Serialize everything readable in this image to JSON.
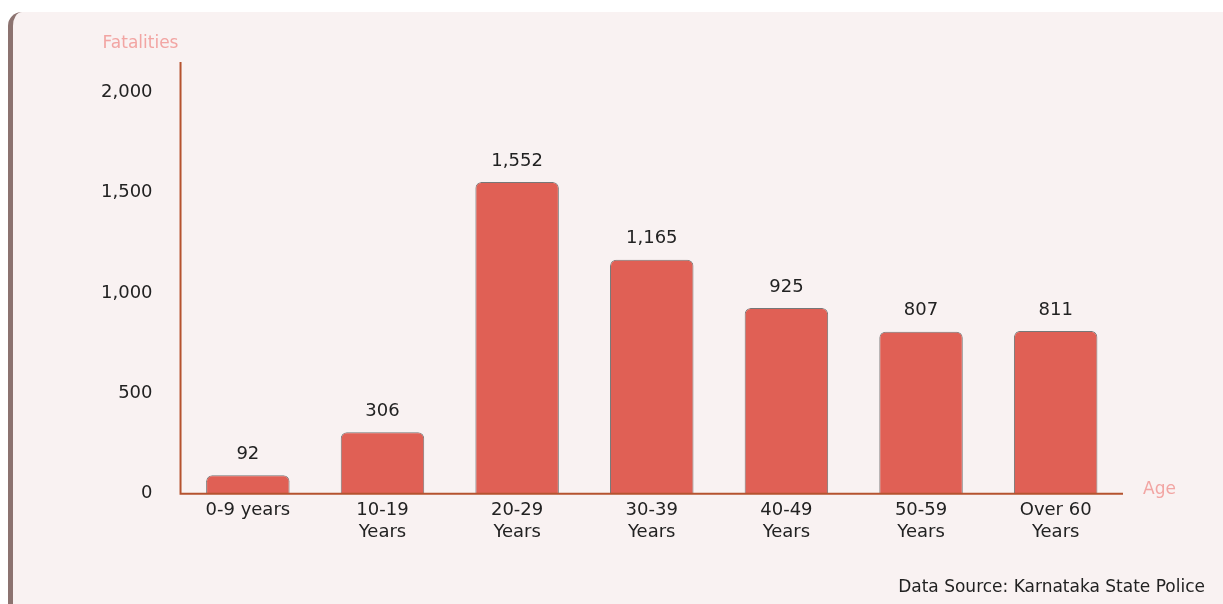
{
  "chart_data": {
    "type": "bar",
    "ylabel": "Fatalities",
    "xlabel": "Age",
    "categories": [
      "0-9 years",
      "10-19 Years",
      "20-29 Years",
      "30-39 Years",
      "40-49 Years",
      "50-59 Years",
      "Over 60 Years"
    ],
    "values": [
      92,
      306,
      1552,
      1165,
      925,
      807,
      811
    ],
    "value_labels": [
      "92",
      "306",
      "1,552",
      "1,165",
      "925",
      "807",
      "811"
    ],
    "color": "#e06055",
    "ylim": [
      0,
      2150
    ],
    "yticks": [
      {
        "value": 0,
        "label": "0"
      },
      {
        "value": 500,
        "label": "500"
      },
      {
        "value": 1000,
        "label": "1,000"
      },
      {
        "value": 1500,
        "label": "1,500"
      },
      {
        "value": 2000,
        "label": "2,000"
      }
    ],
    "grid": false,
    "legend": false,
    "annotations": [
      "Data Source: Karnataka State Police"
    ]
  }
}
